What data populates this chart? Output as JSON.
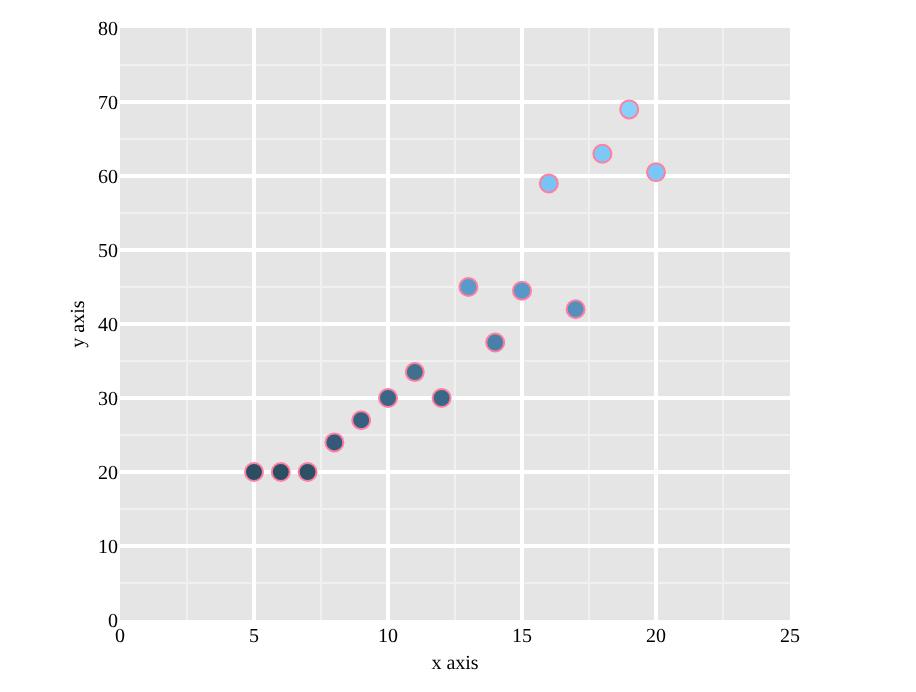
{
  "chart_data": {
    "type": "scatter",
    "xlabel": "x axis",
    "ylabel": "y axis",
    "x": [
      5,
      6,
      7,
      8,
      9,
      10,
      11,
      12,
      13,
      14,
      15,
      16,
      17,
      18,
      19,
      20
    ],
    "values": [
      20,
      20,
      20,
      24,
      27,
      30,
      33.5,
      30,
      45,
      37.5,
      44.5,
      59,
      42,
      63,
      69,
      60.5
    ],
    "colors": [
      "#2d4d63",
      "#2d4d63",
      "#2e5067",
      "#34597a",
      "#375f80",
      "#3b6787",
      "#41708f",
      "#3b6787",
      "#5a9acb",
      "#4a80a8",
      "#5898c8",
      "#79c2f4",
      "#5590bd",
      "#7ec8f8",
      "#86d0fc",
      "#7cc6f7"
    ],
    "marker": "circle",
    "xlim": [
      0,
      25
    ],
    "xticks": [
      0,
      5,
      10,
      15,
      20,
      25
    ],
    "ylim": [
      0,
      80
    ],
    "yticks": [
      0,
      10,
      20,
      30,
      40,
      50,
      60,
      70,
      80
    ],
    "grid": true
  }
}
